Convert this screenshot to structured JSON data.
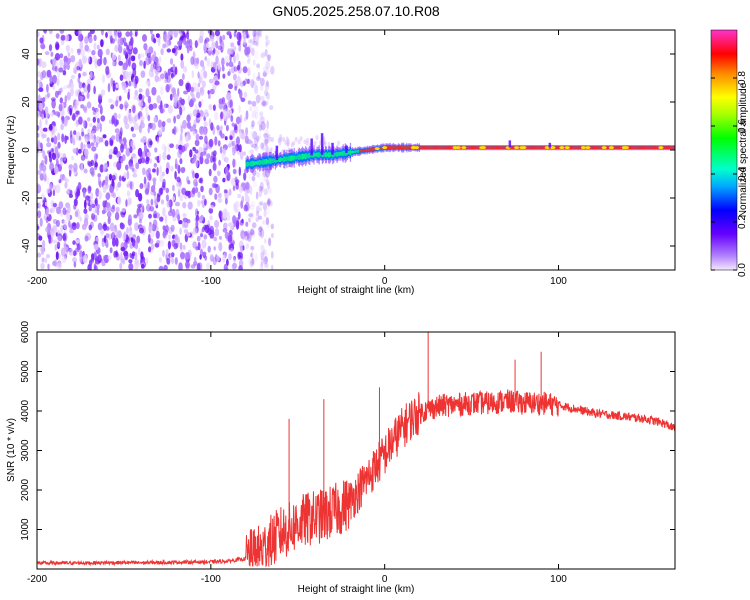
{
  "title": "GN05.2025.258.07.10.R08",
  "chart_data": [
    {
      "type": "heatmap",
      "title": "GN05.2025.258.07.10.R08",
      "xlabel": "Height of straight line (km)",
      "ylabel": "Frequency (Hz)",
      "xlim": [
        -200,
        167
      ],
      "ylim": [
        -50,
        50
      ],
      "xticks": [
        -200,
        -100,
        0,
        100
      ],
      "yticks": [
        -40,
        -20,
        0,
        20,
        40
      ],
      "colorbar": {
        "label": "Normalized spectral amplitude",
        "range": [
          0,
          1
        ],
        "ticks": [
          0.0,
          0.2,
          0.4,
          0.6,
          0.8
        ]
      },
      "noise_region_x": [
        -200,
        -68
      ],
      "signal_line": {
        "x": [
          -80,
          -70,
          -60,
          -50,
          -40,
          -30,
          -20,
          -10,
          0,
          10,
          20,
          40,
          60,
          80,
          100,
          120,
          140,
          167
        ],
        "frequency_hz": [
          -6,
          -5,
          -4,
          -3,
          -2,
          -2,
          -1,
          0,
          1,
          1,
          1,
          1,
          1,
          1,
          1,
          1,
          1,
          1
        ]
      }
    },
    {
      "type": "line",
      "xlabel": "Height of straight line (km)",
      "ylabel": "SNR (10 * v/v)",
      "xlim": [
        -200,
        167
      ],
      "ylim": [
        0,
        6000
      ],
      "xticks": [
        -200,
        -100,
        0,
        100
      ],
      "yticks": [
        1000,
        2000,
        3000,
        4000,
        5000,
        6000
      ],
      "series": [
        {
          "name": "SNR",
          "color": "#ee3333",
          "x": [
            -200,
            -180,
            -160,
            -140,
            -120,
            -100,
            -90,
            -80,
            -75,
            -70,
            -65,
            -60,
            -55,
            -50,
            -45,
            -40,
            -35,
            -30,
            -25,
            -20,
            -15,
            -10,
            -5,
            0,
            5,
            10,
            15,
            20,
            25,
            30,
            35,
            40,
            50,
            60,
            70,
            80,
            90,
            100,
            110,
            120,
            130,
            140,
            150,
            160,
            167
          ],
          "y": [
            150,
            150,
            160,
            160,
            170,
            180,
            200,
            260,
            350,
            500,
            700,
            900,
            1000,
            1150,
            1250,
            1300,
            1350,
            1450,
            1550,
            1700,
            2000,
            2300,
            2600,
            2900,
            3250,
            3550,
            3800,
            3950,
            4050,
            4100,
            4150,
            4150,
            4200,
            4200,
            4250,
            4200,
            4200,
            4150,
            4050,
            3950,
            3900,
            3850,
            3800,
            3700,
            3550
          ]
        }
      ],
      "spikes": [
        {
          "x": -55,
          "y": 3800
        },
        {
          "x": -35,
          "y": 4300
        },
        {
          "x": -3,
          "y": 4600
        },
        {
          "x": 25,
          "y": 6000
        },
        {
          "x": 75,
          "y": 5300
        },
        {
          "x": 90,
          "y": 5500
        }
      ]
    }
  ]
}
